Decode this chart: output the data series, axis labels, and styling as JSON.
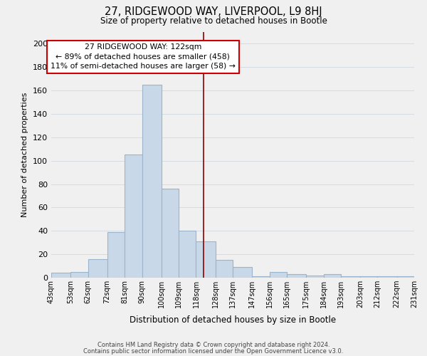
{
  "title": "27, RIDGEWOOD WAY, LIVERPOOL, L9 8HJ",
  "subtitle": "Size of property relative to detached houses in Bootle",
  "xlabel": "Distribution of detached houses by size in Bootle",
  "ylabel": "Number of detached properties",
  "bar_color": "#c8d8e8",
  "bar_edge_color": "#9ab4cc",
  "bins": [
    43,
    53,
    62,
    72,
    81,
    90,
    100,
    109,
    118,
    128,
    137,
    147,
    156,
    165,
    175,
    184,
    193,
    203,
    212,
    222,
    231
  ],
  "bin_labels": [
    "43sqm",
    "53sqm",
    "62sqm",
    "72sqm",
    "81sqm",
    "90sqm",
    "100sqm",
    "109sqm",
    "118sqm",
    "128sqm",
    "137sqm",
    "147sqm",
    "156sqm",
    "165sqm",
    "175sqm",
    "184sqm",
    "193sqm",
    "203sqm",
    "212sqm",
    "222sqm",
    "231sqm"
  ],
  "heights": [
    4,
    5,
    16,
    39,
    105,
    165,
    76,
    40,
    31,
    15,
    9,
    1,
    5,
    3,
    2,
    3,
    1,
    1,
    1,
    1
  ],
  "ylim": [
    0,
    210
  ],
  "yticks": [
    0,
    20,
    40,
    60,
    80,
    100,
    120,
    140,
    160,
    180,
    200
  ],
  "vline_x": 122,
  "vline_color": "#8b0000",
  "annotation_title": "27 RIDGEWOOD WAY: 122sqm",
  "annotation_line1": "← 89% of detached houses are smaller (458)",
  "annotation_line2": "11% of semi-detached houses are larger (58) →",
  "annotation_box_color": "#ffffff",
  "annotation_box_edge": "#cc0000",
  "footer1": "Contains HM Land Registry data © Crown copyright and database right 2024.",
  "footer2": "Contains public sector information licensed under the Open Government Licence v3.0.",
  "bg_color": "#f0f0f0",
  "grid_color": "#d0d8e0"
}
